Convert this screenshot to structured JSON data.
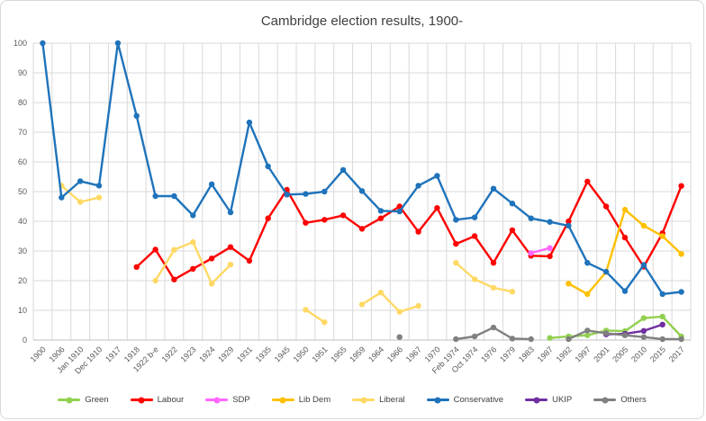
{
  "chart_data": {
    "type": "line",
    "title": "Cambridge election results, 1900-",
    "xlabel": "",
    "ylabel": "",
    "ylim": [
      0,
      100
    ],
    "y_ticks": [
      0,
      10,
      20,
      30,
      40,
      50,
      60,
      70,
      80,
      90,
      100
    ],
    "grid": true,
    "legend_position": "bottom",
    "categories": [
      "1900",
      "1906",
      "Jan 1910",
      "Dec 1910",
      "1917",
      "1918",
      "1922 b-e",
      "1922",
      "1923",
      "1924",
      "1929",
      "1931",
      "1935",
      "1945",
      "1950",
      "1951",
      "1955",
      "1959",
      "1964",
      "1966",
      "1967",
      "1970",
      "Feb 1974",
      "Oct 1974",
      "1976",
      "1979",
      "1983",
      "1987",
      "1992",
      "1997",
      "2001",
      "2005",
      "2010",
      "2015",
      "2017"
    ],
    "series": [
      {
        "name": "Green",
        "color": "#92d050",
        "values": [
          null,
          null,
          null,
          null,
          null,
          null,
          null,
          null,
          null,
          null,
          null,
          null,
          null,
          null,
          null,
          null,
          null,
          null,
          null,
          null,
          null,
          null,
          null,
          null,
          null,
          null,
          null,
          0.7,
          1.2,
          1.6,
          3.2,
          3.0,
          7.4,
          7.9,
          1.2
        ]
      },
      {
        "name": "Labour",
        "color": "#fe0000",
        "values": [
          null,
          null,
          null,
          null,
          null,
          24.6,
          30.5,
          20.4,
          24,
          27.5,
          31.3,
          26.7,
          41,
          50.6,
          39.5,
          40.5,
          42,
          37.5,
          41,
          45,
          36.5,
          44.5,
          32.4,
          35,
          26,
          37,
          28.4,
          28.2,
          40,
          53.4,
          45,
          34.5,
          24.7,
          36,
          51.9
        ]
      },
      {
        "name": "SDP",
        "color": "#ff66ff",
        "values": [
          null,
          null,
          null,
          null,
          null,
          null,
          null,
          null,
          null,
          null,
          null,
          null,
          null,
          null,
          null,
          null,
          null,
          null,
          null,
          null,
          null,
          null,
          null,
          null,
          null,
          null,
          29.3,
          31,
          null,
          null,
          null,
          null,
          null,
          null,
          null
        ]
      },
      {
        "name": "Lib Dem",
        "color": "#ffc000",
        "values": [
          null,
          null,
          null,
          null,
          null,
          null,
          null,
          null,
          null,
          null,
          null,
          null,
          null,
          null,
          null,
          null,
          null,
          null,
          null,
          null,
          null,
          null,
          null,
          null,
          null,
          null,
          null,
          null,
          19,
          15.5,
          22.9,
          43.9,
          38.5,
          35,
          29
        ]
      },
      {
        "name": "Liberal",
        "color": "#ffd965",
        "values": [
          null,
          52,
          46.5,
          48,
          null,
          null,
          20,
          30.4,
          33,
          19,
          25.4,
          null,
          null,
          null,
          10.2,
          6,
          null,
          12,
          16,
          9.5,
          11.5,
          null,
          26,
          20.5,
          17.6,
          16.3,
          null,
          null,
          null,
          null,
          null,
          null,
          null,
          null,
          null
        ]
      },
      {
        "name": "Conservative",
        "color": "#1f73bb",
        "values": [
          100,
          48,
          53.5,
          52,
          100,
          75.5,
          48.5,
          48.5,
          42,
          52.5,
          43,
          73.3,
          58.5,
          49,
          49.2,
          50,
          57.3,
          50.2,
          43.5,
          43.3,
          52,
          55.3,
          40.5,
          41.3,
          51,
          46,
          41,
          39.8,
          38.5,
          26,
          23,
          16.5,
          25.3,
          15.5,
          16.2
        ]
      },
      {
        "name": "UKIP",
        "color": "#7030a0",
        "values": [
          null,
          null,
          null,
          null,
          null,
          null,
          null,
          null,
          null,
          null,
          null,
          null,
          null,
          null,
          null,
          null,
          null,
          null,
          null,
          null,
          null,
          null,
          null,
          null,
          null,
          null,
          null,
          null,
          null,
          null,
          1.9,
          2.1,
          3.1,
          5.2,
          null
        ]
      },
      {
        "name": "Others",
        "color": "#808080",
        "values": [
          null,
          null,
          null,
          null,
          null,
          null,
          null,
          null,
          null,
          null,
          null,
          null,
          null,
          null,
          null,
          null,
          null,
          null,
          null,
          1.0,
          null,
          null,
          0.3,
          1.2,
          4.2,
          0.5,
          0.3,
          null,
          0.3,
          3.2,
          2.3,
          1.6,
          1.0,
          0.3,
          0.3
        ]
      }
    ],
    "colors": {
      "gridline": "#d9d9d9",
      "axis_line": "#bfbfbf",
      "tick_text": "#595959",
      "title_text": "#404040",
      "background": "#ffffff"
    }
  }
}
